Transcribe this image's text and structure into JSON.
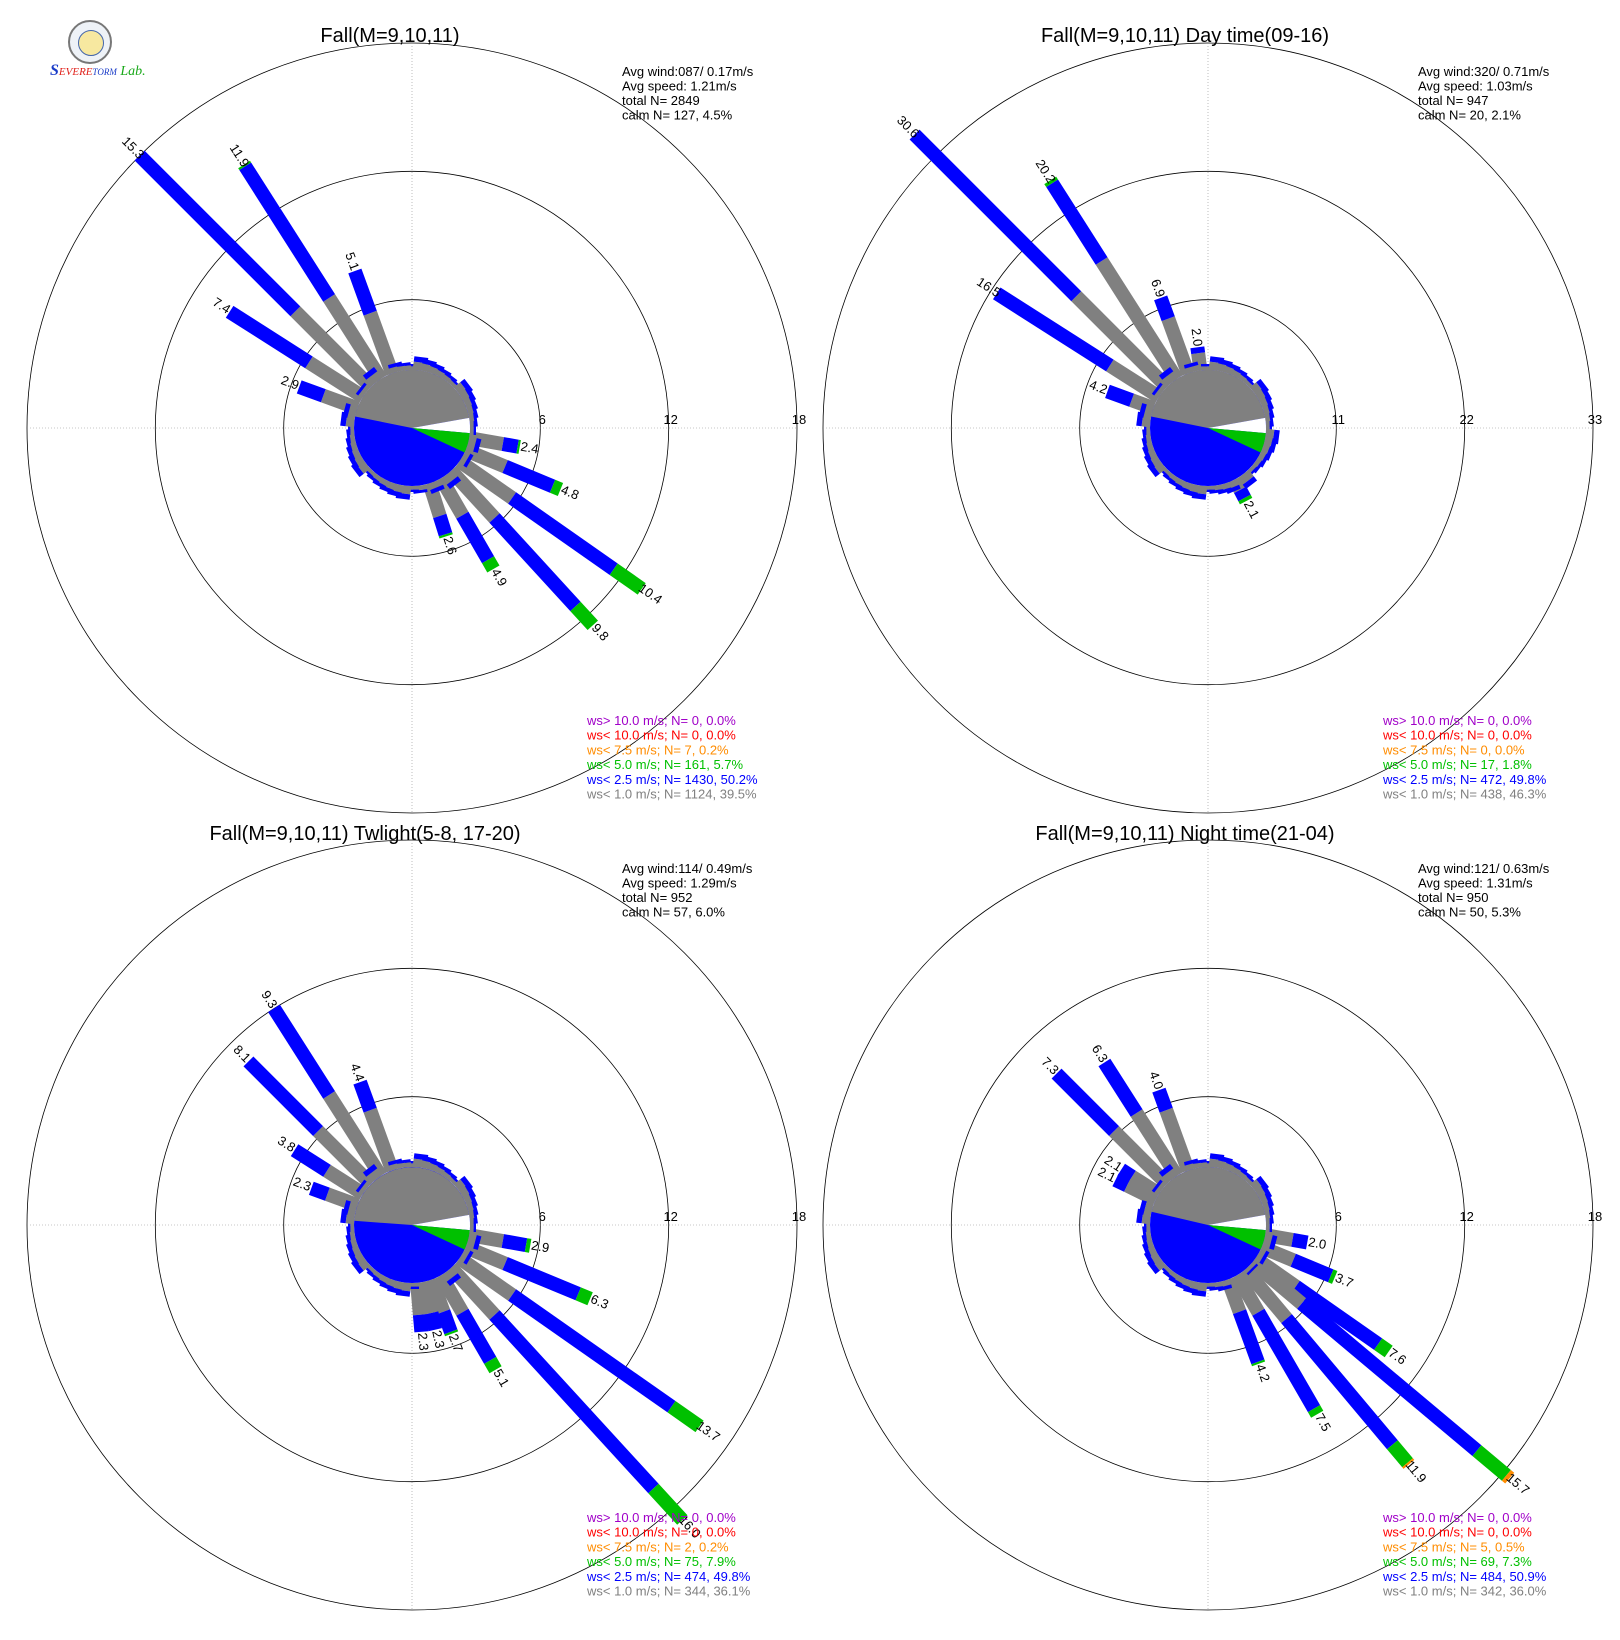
{
  "logo": {
    "text": "Severe Storm Lab."
  },
  "colors": {
    "calm": "#808080",
    "lt1": "#808080",
    "lt2_5": "#0000ff",
    "lt5": "#00c000",
    "lt7_5": "#ff8c00",
    "lt10": "#ff0000",
    "gt10": "#a000c8",
    "grid": "#909090"
  },
  "chart_data": [
    {
      "type": "wind-rose",
      "title": "Fall(M=9,10,11)",
      "rings": [
        "6",
        "12",
        "18"
      ],
      "rmax": 18,
      "stats": [
        "Avg wind:087/ 0.17m/s",
        "Avg speed: 1.21m/s",
        "total N=       2849",
        "calm N=    127,   4.5%"
      ],
      "calm_pct": 4.5,
      "calm_split": {
        "gray": 0.27,
        "white": 0.07
      },
      "legend": [
        {
          "text": "ws> 10.0 m/s; N=     0,  0.0%",
          "key": "gt10"
        },
        {
          "text": "ws< 10.0 m/s; N=     0,  0.0%",
          "key": "lt10"
        },
        {
          "text": "ws<  7.5 m/s; N=     7,  0.2%",
          "key": "lt7_5"
        },
        {
          "text": "ws<  5.0 m/s; N=   161,  5.7%",
          "key": "lt5"
        },
        {
          "text": "ws<  2.5 m/s; N=  1430, 50.2%",
          "key": "lt2_5"
        },
        {
          "text": "ws<  1.0 m/s; N=  1124, 39.5%",
          "key": "lt1"
        }
      ],
      "petals": [
        {
          "dir": 315,
          "total": 15.3,
          "label": "15.3",
          "gray": 5.0,
          "green": 0.0,
          "orange": 0.0
        },
        {
          "dir": 327.5,
          "total": 11.9,
          "label": "11.9",
          "gray": 4.5,
          "green": 0.1,
          "orange": 0.0
        },
        {
          "dir": 302.5,
          "total": 7.4,
          "label": "7.4",
          "gray": 3.0,
          "green": 0.0,
          "orange": 0.0
        },
        {
          "dir": 340,
          "total": 5.1,
          "label": "5.1",
          "gray": 3.0,
          "green": 0.0,
          "orange": 0.0
        },
        {
          "dir": 290,
          "total": 2.9,
          "label": "2.9",
          "gray": 1.7,
          "green": 0.0,
          "orange": 0.0
        },
        {
          "dir": 100,
          "total": 2.4,
          "label": "2.4",
          "gray": 1.6,
          "green": 0.1,
          "orange": 0.0
        },
        {
          "dir": 112.5,
          "total": 4.8,
          "label": "4.8",
          "gray": 2.0,
          "green": 0.4,
          "orange": 0.0
        },
        {
          "dir": 125,
          "total": 10.4,
          "label": "10.4",
          "gray": 3.0,
          "green": 1.6,
          "orange": 0.0
        },
        {
          "dir": 137.5,
          "total": 9.8,
          "label": "9.8",
          "gray": 3.0,
          "green": 1.2,
          "orange": 0.0
        },
        {
          "dir": 150,
          "total": 4.9,
          "label": "4.9",
          "gray": 2.0,
          "green": 0.5,
          "orange": 0.0
        },
        {
          "dir": 162.5,
          "total": 2.6,
          "label": "2.6",
          "gray": 1.6,
          "green": 0.1,
          "orange": 0.0
        }
      ]
    },
    {
      "type": "wind-rose",
      "title": "Fall(M=9,10,11) Day time(09-16)",
      "rings": [
        "11",
        "22",
        "33"
      ],
      "rmax": 33,
      "stats": [
        "Avg wind:320/ 0.71m/s",
        "Avg speed: 1.03m/s",
        "total N=        947",
        "calm N=     20,   2.1%"
      ],
      "calm_pct": 2.1,
      "calm_split": {
        "gray": 0.27,
        "white": 0.06
      },
      "legend": [
        {
          "text": "ws> 10.0 m/s; N=     0,  0.0%",
          "key": "gt10"
        },
        {
          "text": "ws< 10.0 m/s; N=     0,  0.0%",
          "key": "lt10"
        },
        {
          "text": "ws<  7.5 m/s; N=     0,  0.0%",
          "key": "lt7_5"
        },
        {
          "text": "ws<  5.0 m/s; N=    17,  1.8%",
          "key": "lt5"
        },
        {
          "text": "ws<  2.5 m/s; N=   472, 49.8%",
          "key": "lt2_5"
        },
        {
          "text": "ws<  1.0 m/s; N=   438, 46.3%",
          "key": "lt1"
        }
      ],
      "petals": [
        {
          "dir": 315,
          "total": 30.6,
          "label": "30.6",
          "gray": 11.0,
          "green": 0.0,
          "orange": 0.0
        },
        {
          "dir": 327.5,
          "total": 20.2,
          "label": "20.2",
          "gray": 12.0,
          "green": 0.3,
          "orange": 0.0
        },
        {
          "dir": 302.5,
          "total": 16.5,
          "label": "16.5",
          "gray": 5.0,
          "green": 0.0,
          "orange": 0.0
        },
        {
          "dir": 340,
          "total": 6.9,
          "label": "6.9",
          "gray": 5.0,
          "green": 0.0,
          "orange": 0.0
        },
        {
          "dir": 290,
          "total": 4.2,
          "label": "4.2",
          "gray": 2.0,
          "green": 0.0,
          "orange": 0.0
        },
        {
          "dir": 352.5,
          "total": 2.0,
          "label": "2.0",
          "gray": 1.5,
          "green": 0.0,
          "orange": 0.0
        },
        {
          "dir": 152.5,
          "total": 2.1,
          "label": "2.1",
          "gray": 1.0,
          "green": 0.3,
          "orange": 0.0
        }
      ]
    },
    {
      "type": "wind-rose",
      "title": "Fall(M=9,10,11) Twlight(5-8, 17-20)",
      "rings": [
        "6",
        "12",
        "18"
      ],
      "rmax": 18,
      "stats": [
        "Avg wind:114/ 0.49m/s",
        "Avg speed: 1.29m/s",
        "total N=        952",
        "calm N=     57,   6.0%"
      ],
      "calm_pct": 6.0,
      "calm_split": {
        "gray": 0.31,
        "white": 0.06
      },
      "legend": [
        {
          "text": "ws> 10.0 m/s; N=     0,  0.0%",
          "key": "gt10"
        },
        {
          "text": "ws< 10.0 m/s; N=     0,  0.0%",
          "key": "lt10"
        },
        {
          "text": "ws<  7.5 m/s; N=     2,  0.2%",
          "key": "lt7_5"
        },
        {
          "text": "ws<  5.0 m/s; N=    75,  7.9%",
          "key": "lt5"
        },
        {
          "text": "ws<  2.5 m/s; N=   474, 49.8%",
          "key": "lt2_5"
        },
        {
          "text": "ws<  1.0 m/s; N=   344, 36.1%",
          "key": "lt1"
        }
      ],
      "petals": [
        {
          "dir": 327.5,
          "total": 9.3,
          "label": "9.3",
          "gray": 4.5,
          "green": 0.0,
          "orange": 0.0
        },
        {
          "dir": 315,
          "total": 8.1,
          "label": "8.1",
          "gray": 3.5,
          "green": 0.0,
          "orange": 0.0
        },
        {
          "dir": 340,
          "total": 4.4,
          "label": "4.4",
          "gray": 3.0,
          "green": 0.0,
          "orange": 0.0
        },
        {
          "dir": 302.5,
          "total": 3.8,
          "label": "3.8",
          "gray": 2.0,
          "green": 0.0,
          "orange": 0.0
        },
        {
          "dir": 290,
          "total": 2.3,
          "label": "2.3",
          "gray": 1.5,
          "green": 0.0,
          "orange": 0.0
        },
        {
          "dir": 100,
          "total": 2.9,
          "label": "2.9",
          "gray": 1.6,
          "green": 0.2,
          "orange": 0.0
        },
        {
          "dir": 112.5,
          "total": 6.3,
          "label": "6.3",
          "gray": 2.0,
          "green": 0.6,
          "orange": 0.0
        },
        {
          "dir": 125,
          "total": 13.7,
          "label": "13.7",
          "gray": 3.0,
          "green": 1.6,
          "orange": 0.0
        },
        {
          "dir": 137.5,
          "total": 16.0,
          "label": "16.0",
          "gray": 3.0,
          "green": 2.0,
          "orange": 0.0
        },
        {
          "dir": 150,
          "total": 5.1,
          "label": "5.1",
          "gray": 2.0,
          "green": 0.5,
          "orange": 0.0
        },
        {
          "dir": 160,
          "total": 2.7,
          "label": "2.7",
          "gray": 1.6,
          "green": 0.1,
          "orange": 0.0
        },
        {
          "dir": 167.5,
          "total": 2.3,
          "label": "2.3",
          "gray": 1.5,
          "green": 0.0,
          "orange": 0.0
        },
        {
          "dir": 175,
          "total": 2.3,
          "label": "2.3",
          "gray": 1.5,
          "green": 0.0,
          "orange": 0.0
        }
      ]
    },
    {
      "type": "wind-rose",
      "title": "Fall(M=9,10,11) Night time(21-04)",
      "rings": [
        "6",
        "12",
        "18"
      ],
      "rmax": 18,
      "stats": [
        "Avg wind:121/ 0.63m/s",
        "Avg speed: 1.31m/s",
        "total N=        950",
        "calm N=     50,   5.3%"
      ],
      "calm_pct": 5.3,
      "calm_split": {
        "gray": 0.26,
        "white": 0.06
      },
      "legend": [
        {
          "text": "ws> 10.0 m/s; N=     0,  0.0%",
          "key": "gt10"
        },
        {
          "text": "ws< 10.0 m/s; N=     0,  0.0%",
          "key": "lt10"
        },
        {
          "text": "ws<  7.5 m/s; N=     5,  0.5%",
          "key": "lt7_5"
        },
        {
          "text": "ws<  5.0 m/s; N=    69,  7.3%",
          "key": "lt5"
        },
        {
          "text": "ws<  2.5 m/s; N=   484, 50.9%",
          "key": "lt2_5"
        },
        {
          "text": "ws<  1.0 m/s; N=   342, 36.0%",
          "key": "lt1"
        }
      ],
      "petals": [
        {
          "dir": 315,
          "total": 7.3,
          "label": "7.3",
          "gray": 3.5,
          "green": 0.0,
          "orange": 0.0
        },
        {
          "dir": 327.5,
          "total": 6.3,
          "label": "6.3",
          "gray": 3.5,
          "green": 0.0,
          "orange": 0.0
        },
        {
          "dir": 340,
          "total": 4.0,
          "label": "4.0",
          "gray": 3.0,
          "green": 0.0,
          "orange": 0.0
        },
        {
          "dir": 302.5,
          "total": 2.1,
          "label": "2.1",
          "gray": 1.5,
          "green": 0.0,
          "orange": 0.0
        },
        {
          "dir": 296,
          "total": 2.1,
          "label": "2.1",
          "gray": 1.5,
          "green": 0.0,
          "orange": 0.0
        },
        {
          "dir": 100,
          "total": 2.0,
          "label": "2.0",
          "gray": 1.3,
          "green": 0.0,
          "orange": 0.0
        },
        {
          "dir": 112.5,
          "total": 3.7,
          "label": "3.7",
          "gray": 1.6,
          "green": 0.2,
          "orange": 0.0
        },
        {
          "dir": 125,
          "total": 7.6,
          "label": "7.6",
          "gray": 2.3,
          "green": 0.6,
          "orange": 0.0
        },
        {
          "dir": 130,
          "total": 15.7,
          "label": "15.7",
          "gray": 3.0,
          "green": 1.8,
          "orange": 0.2
        },
        {
          "dir": 140,
          "total": 11.9,
          "label": "11.9",
          "gray": 3.0,
          "green": 1.1,
          "orange": 0.1
        },
        {
          "dir": 150,
          "total": 7.5,
          "label": "7.5",
          "gray": 2.0,
          "green": 0.3,
          "orange": 0.0
        },
        {
          "dir": 160,
          "total": 4.2,
          "label": "4.2",
          "gray": 1.6,
          "green": 0.1,
          "orange": 0.0
        }
      ]
    }
  ]
}
